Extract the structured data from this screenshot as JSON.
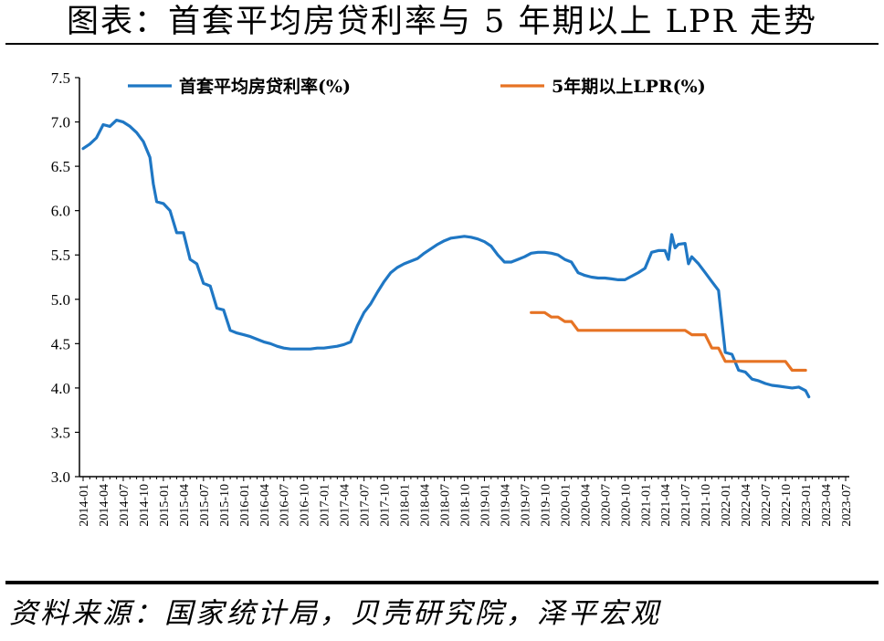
{
  "header": {
    "title": "图表：首套平均房贷利率与 5 年期以上 LPR 走势"
  },
  "footer": {
    "source": "资料来源：国家统计局，贝壳研究院，泽平宏观"
  },
  "chart_data": {
    "type": "line",
    "title": "图表：首套平均房贷利率与 5 年期以上 LPR 走势",
    "xlabel": "",
    "ylabel": "",
    "ylim": [
      3.0,
      7.5
    ],
    "yticks": [
      "3.0",
      "3.5",
      "4.0",
      "4.5",
      "5.0",
      "5.5",
      "6.0",
      "6.5",
      "7.0",
      "7.5"
    ],
    "grid": false,
    "legend_position": "top",
    "categories": [
      "2014-01",
      "2014-04",
      "2014-07",
      "2014-10",
      "2015-01",
      "2015-04",
      "2015-07",
      "2015-10",
      "2016-01",
      "2016-04",
      "2016-07",
      "2016-10",
      "2017-01",
      "2017-04",
      "2017-07",
      "2017-10",
      "2018-01",
      "2018-04",
      "2018-07",
      "2018-10",
      "2019-01",
      "2019-04",
      "2019-07",
      "2019-10",
      "2020-01",
      "2020-04",
      "2020-07",
      "2020-10",
      "2021-01",
      "2021-04",
      "2021-07",
      "2021-10",
      "2022-01",
      "2022-04",
      "2022-07",
      "2022-10",
      "2023-01",
      "2023-04",
      "2023-07"
    ],
    "series": [
      {
        "name": "首套平均房贷利率(%)",
        "color": "#1f77c4",
        "points": [
          [
            0,
            6.7
          ],
          [
            1,
            6.75
          ],
          [
            2,
            6.82
          ],
          [
            3,
            6.97
          ],
          [
            4,
            6.95
          ],
          [
            5,
            7.02
          ],
          [
            6,
            7.0
          ],
          [
            7,
            6.95
          ],
          [
            8,
            6.88
          ],
          [
            9,
            6.78
          ],
          [
            10,
            6.6
          ],
          [
            10.5,
            6.3
          ],
          [
            11,
            6.1
          ],
          [
            12,
            6.08
          ],
          [
            13,
            6.0
          ],
          [
            14,
            5.75
          ],
          [
            15,
            5.75
          ],
          [
            16,
            5.45
          ],
          [
            17,
            5.4
          ],
          [
            18,
            5.18
          ],
          [
            19,
            5.15
          ],
          [
            20,
            4.9
          ],
          [
            21,
            4.88
          ],
          [
            22,
            4.65
          ],
          [
            23,
            4.62
          ],
          [
            24,
            4.6
          ],
          [
            25,
            4.58
          ],
          [
            26,
            4.55
          ],
          [
            27,
            4.52
          ],
          [
            28,
            4.5
          ],
          [
            29,
            4.47
          ],
          [
            30,
            4.45
          ],
          [
            31,
            4.44
          ],
          [
            32,
            4.44
          ],
          [
            33,
            4.44
          ],
          [
            34,
            4.44
          ],
          [
            35,
            4.45
          ],
          [
            36,
            4.45
          ],
          [
            37,
            4.46
          ],
          [
            38,
            4.47
          ],
          [
            39,
            4.49
          ],
          [
            40,
            4.52
          ],
          [
            41,
            4.7
          ],
          [
            42,
            4.85
          ],
          [
            43,
            4.95
          ],
          [
            44,
            5.08
          ],
          [
            45,
            5.2
          ],
          [
            46,
            5.3
          ],
          [
            47,
            5.36
          ],
          [
            48,
            5.4
          ],
          [
            49,
            5.43
          ],
          [
            50,
            5.46
          ],
          [
            51,
            5.52
          ],
          [
            52,
            5.57
          ],
          [
            53,
            5.62
          ],
          [
            54,
            5.66
          ],
          [
            55,
            5.69
          ],
          [
            56,
            5.7
          ],
          [
            57,
            5.71
          ],
          [
            58,
            5.7
          ],
          [
            59,
            5.68
          ],
          [
            60,
            5.65
          ],
          [
            61,
            5.6
          ],
          [
            62,
            5.5
          ],
          [
            63,
            5.42
          ],
          [
            64,
            5.42
          ],
          [
            65,
            5.45
          ],
          [
            66,
            5.48
          ],
          [
            67,
            5.52
          ],
          [
            68,
            5.53
          ],
          [
            69,
            5.53
          ],
          [
            70,
            5.52
          ],
          [
            71,
            5.5
          ],
          [
            72,
            5.45
          ],
          [
            73,
            5.42
          ],
          [
            74,
            5.3
          ],
          [
            75,
            5.27
          ],
          [
            76,
            5.25
          ],
          [
            77,
            5.24
          ],
          [
            78,
            5.24
          ],
          [
            79,
            5.23
          ],
          [
            80,
            5.22
          ],
          [
            81,
            5.22
          ],
          [
            82,
            5.26
          ],
          [
            83,
            5.3
          ],
          [
            84,
            5.35
          ],
          [
            85,
            5.53
          ],
          [
            86,
            5.55
          ],
          [
            87,
            5.55
          ],
          [
            87.5,
            5.45
          ],
          [
            88,
            5.73
          ],
          [
            88.5,
            5.58
          ],
          [
            89,
            5.62
          ],
          [
            90,
            5.63
          ],
          [
            90.5,
            5.4
          ],
          [
            91,
            5.48
          ],
          [
            92,
            5.4
          ],
          [
            93,
            5.3
          ],
          [
            94,
            5.2
          ],
          [
            95,
            5.1
          ],
          [
            96,
            4.4
          ],
          [
            97,
            4.38
          ],
          [
            98,
            4.2
          ],
          [
            99,
            4.18
          ],
          [
            100,
            4.1
          ],
          [
            101,
            4.08
          ],
          [
            102,
            4.05
          ],
          [
            103,
            4.03
          ],
          [
            104,
            4.02
          ],
          [
            105,
            4.01
          ],
          [
            106,
            4.0
          ],
          [
            107,
            4.01
          ],
          [
            108,
            3.97
          ],
          [
            108.5,
            3.9
          ]
        ]
      },
      {
        "name": "5年期以上LPR(%)",
        "color": "#e67324",
        "points": [
          [
            67,
            4.85
          ],
          [
            69,
            4.85
          ],
          [
            70,
            4.8
          ],
          [
            71,
            4.8
          ],
          [
            72,
            4.75
          ],
          [
            73,
            4.75
          ],
          [
            74,
            4.65
          ],
          [
            75,
            4.65
          ],
          [
            76,
            4.65
          ],
          [
            85,
            4.65
          ],
          [
            88,
            4.65
          ],
          [
            90,
            4.65
          ],
          [
            91,
            4.6
          ],
          [
            92,
            4.6
          ],
          [
            93,
            4.6
          ],
          [
            94,
            4.45
          ],
          [
            95,
            4.45
          ],
          [
            96,
            4.3
          ],
          [
            97,
            4.3
          ],
          [
            105,
            4.3
          ],
          [
            106,
            4.2
          ],
          [
            108,
            4.2
          ]
        ]
      }
    ]
  }
}
